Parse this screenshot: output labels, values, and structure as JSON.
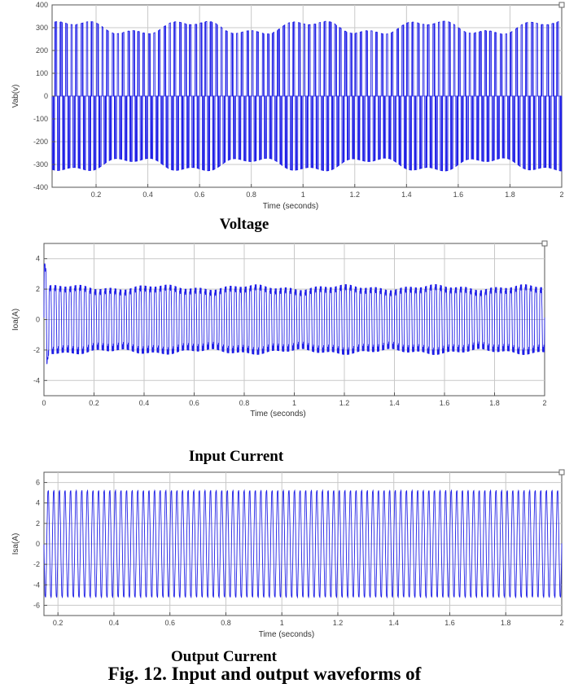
{
  "figure_caption": "Fig. 12. Input and output waveforms of",
  "colors": {
    "trace": "#1f1fe6",
    "grid": "#c8c8c8",
    "axis": "#555555"
  },
  "chart_data": [
    {
      "type": "line",
      "caption": "Voltage",
      "xlabel": "Time (seconds)",
      "ylabel": "Vab(v)",
      "xlim": [
        0.03,
        2.0
      ],
      "ylim": [
        -400,
        400
      ],
      "xticks": [
        0.2,
        0.4,
        0.6,
        0.8,
        1,
        1.2,
        1.4,
        1.6,
        1.8,
        2
      ],
      "xtick_labels": [
        "0.2",
        "0.4",
        "0.6",
        "0.8",
        "1",
        "1.2",
        "1.4",
        "1.6",
        "1.8",
        "2"
      ],
      "yticks": [
        400,
        300,
        200,
        100,
        0,
        -100,
        -200,
        -300,
        -400
      ],
      "ytick_labels": [
        "400",
        "300",
        "200",
        "100",
        "0",
        "-100",
        "-200",
        "-300",
        "-400"
      ],
      "grid": true,
      "series": [
        {
          "waveform": "pwm-line-voltage",
          "frequency_hz": 50,
          "peak": 300,
          "peak_range": [
            270,
            330
          ]
        }
      ]
    },
    {
      "type": "line",
      "caption": "Input Current",
      "xlabel": "Time (seconds)",
      "ylabel": "Ioa(A)",
      "xlim": [
        0,
        2
      ],
      "ylim": [
        -5,
        5
      ],
      "xticks": [
        0,
        0.2,
        0.4,
        0.6,
        0.8,
        1,
        1.2,
        1.4,
        1.6,
        1.8,
        2
      ],
      "xtick_labels": [
        "0",
        "0.2",
        "0.4",
        "0.6",
        "0.8",
        "1",
        "1.2",
        "1.4",
        "1.6",
        "1.8",
        "2"
      ],
      "yticks": [
        4,
        2,
        0,
        -2,
        -4
      ],
      "ytick_labels": [
        "4",
        "2",
        "0",
        "-2",
        "-4"
      ],
      "grid": true,
      "series": [
        {
          "waveform": "rectifier-input-current",
          "frequency_hz": 50,
          "peak": 2.1,
          "inrush_peak": 4.0,
          "inrush_end_s": 0.02
        }
      ]
    },
    {
      "type": "line",
      "caption": "Output Current",
      "xlabel": "Time (seconds)",
      "ylabel": "Isa(A)",
      "xlim": [
        0.15,
        2.0
      ],
      "ylim": [
        -7,
        7
      ],
      "xticks": [
        0.2,
        0.4,
        0.6,
        0.8,
        1,
        1.2,
        1.4,
        1.6,
        1.8,
        2
      ],
      "xtick_labels": [
        "0.2",
        "0.4",
        "0.6",
        "0.8",
        "1",
        "1.2",
        "1.4",
        "1.6",
        "1.8",
        "2"
      ],
      "yticks": [
        6,
        4,
        2,
        0,
        -2,
        -4,
        -6
      ],
      "ytick_labels": [
        "6",
        "4",
        "2",
        "0",
        "-2",
        "-4",
        "-6"
      ],
      "grid": true,
      "series": [
        {
          "waveform": "sinusoidal-output-current",
          "frequency_hz": 50,
          "peak": 5.3
        }
      ]
    }
  ]
}
